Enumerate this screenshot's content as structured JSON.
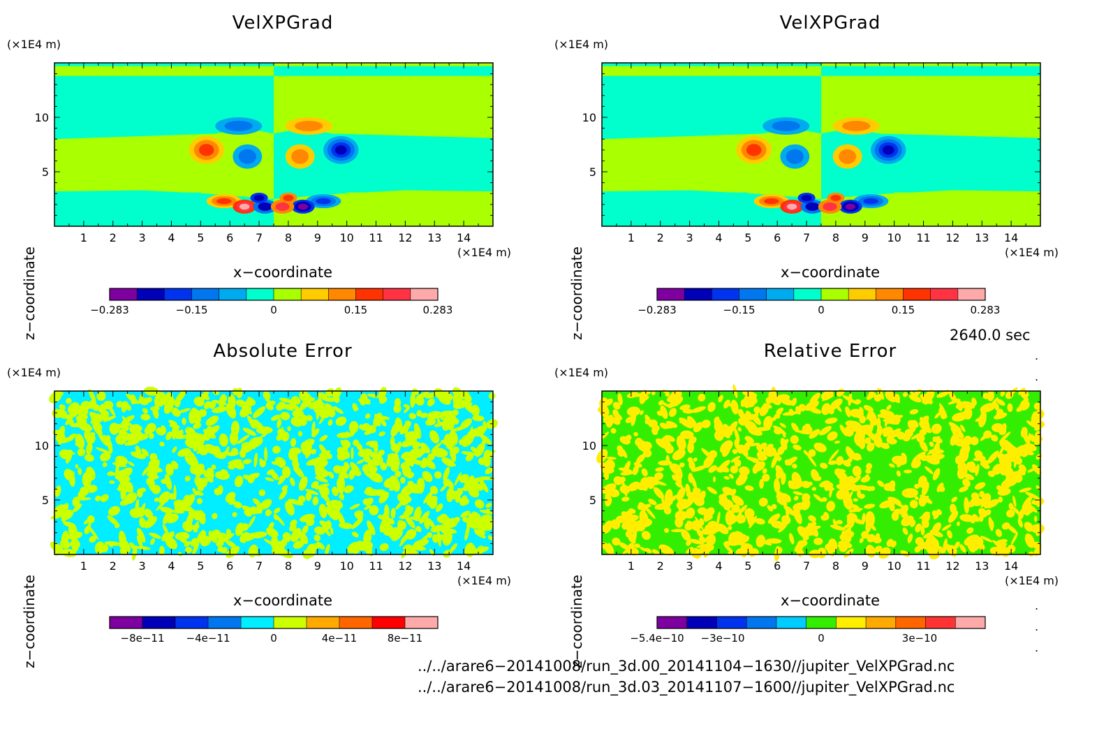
{
  "chart_data": [
    {
      "type": "heatmap",
      "title": "VelXPGrad",
      "xlabel": "x−coordinate",
      "ylabel": "z−coordinate",
      "x_unit": "(×1E4 m)",
      "y_unit": "(×1E4 m)",
      "xlim": [
        0,
        15
      ],
      "ylim": [
        0,
        15
      ],
      "x_ticks": [
        "1",
        "2",
        "3",
        "4",
        "5",
        "6",
        "7",
        "8",
        "9",
        "10",
        "11",
        "12",
        "13",
        "14"
      ],
      "y_ticks": [
        "5",
        "10"
      ],
      "colorbar": {
        "colors": [
          "#7f00a0",
          "#0000b8",
          "#0033ee",
          "#0077ee",
          "#00aaee",
          "#00ffcc",
          "#aaff00",
          "#ffcc00",
          "#ff8800",
          "#ff3300",
          "#ff3344",
          "#ffaaaa"
        ],
        "tick_labels": [
          "−0.283",
          "−0.15",
          "0",
          "0.15",
          "0.283"
        ]
      }
    },
    {
      "type": "heatmap",
      "title": "VelXPGrad",
      "xlabel": "x−coordinate",
      "ylabel": "z−coordinate",
      "x_unit": "(×1E4 m)",
      "y_unit": "(×1E4 m)",
      "xlim": [
        0,
        15
      ],
      "ylim": [
        0,
        15
      ],
      "x_ticks": [
        "1",
        "2",
        "3",
        "4",
        "5",
        "6",
        "7",
        "8",
        "9",
        "10",
        "11",
        "12",
        "13",
        "14"
      ],
      "y_ticks": [
        "5",
        "10"
      ],
      "colorbar": {
        "colors": [
          "#7f00a0",
          "#0000b8",
          "#0033ee",
          "#0077ee",
          "#00aaee",
          "#00ffcc",
          "#aaff00",
          "#ffcc00",
          "#ff8800",
          "#ff3300",
          "#ff3344",
          "#ffaaaa"
        ],
        "tick_labels": [
          "−0.283",
          "−0.15",
          "0",
          "0.15",
          "0.283"
        ]
      }
    },
    {
      "type": "heatmap",
      "title": "Absolute Error",
      "xlabel": "x−coordinate",
      "ylabel": "z−coordinate",
      "x_unit": "(×1E4 m)",
      "y_unit": "(×1E4 m)",
      "xlim": [
        0,
        15
      ],
      "ylim": [
        0,
        15
      ],
      "x_ticks": [
        "1",
        "2",
        "3",
        "4",
        "5",
        "6",
        "7",
        "8",
        "9",
        "10",
        "11",
        "12",
        "13",
        "14"
      ],
      "y_ticks": [
        "5",
        "10"
      ],
      "field_colors": [
        "#00eeff",
        "#ccff00"
      ],
      "colorbar": {
        "colors": [
          "#7f00a0",
          "#0000b8",
          "#0033ee",
          "#0077ee",
          "#00eeff",
          "#ccff00",
          "#ffaa00",
          "#ff6600",
          "#ff0000",
          "#ffaaaa"
        ],
        "tick_labels": [
          "−8e−11",
          "−4e−11",
          "0",
          "4e−11",
          "8e−11"
        ]
      }
    },
    {
      "type": "heatmap",
      "title": "Relative Error",
      "xlabel": "x−coordinate",
      "ylabel": "z−coordinate",
      "x_unit": "(×1E4 m)",
      "y_unit": "(×1E4 m)",
      "xlim": [
        0,
        15
      ],
      "ylim": [
        0,
        15
      ],
      "x_ticks": [
        "1",
        "2",
        "3",
        "4",
        "5",
        "6",
        "7",
        "8",
        "9",
        "10",
        "11",
        "12",
        "13",
        "14"
      ],
      "y_ticks": [
        "5",
        "10"
      ],
      "field_colors": [
        "#33ee00",
        "#ffee00"
      ],
      "colorbar": {
        "colors": [
          "#7f00a0",
          "#0000b8",
          "#0033ee",
          "#0077ee",
          "#00ccff",
          "#33ee00",
          "#ffee00",
          "#ffaa00",
          "#ff6600",
          "#ff3333",
          "#ffaaaa"
        ],
        "tick_labels": [
          "−5.4e−10",
          "−3e−10",
          "0",
          "3e−10"
        ]
      }
    }
  ],
  "timestamp": "2640.0 sec",
  "paths": [
    "../../arare6−20141008/run_3d.00_20141104−1630//jupiter_VelXPGrad.nc",
    "../../arare6−20141008/run_3d.03_20141107−1600//jupiter_VelXPGrad.nc"
  ]
}
